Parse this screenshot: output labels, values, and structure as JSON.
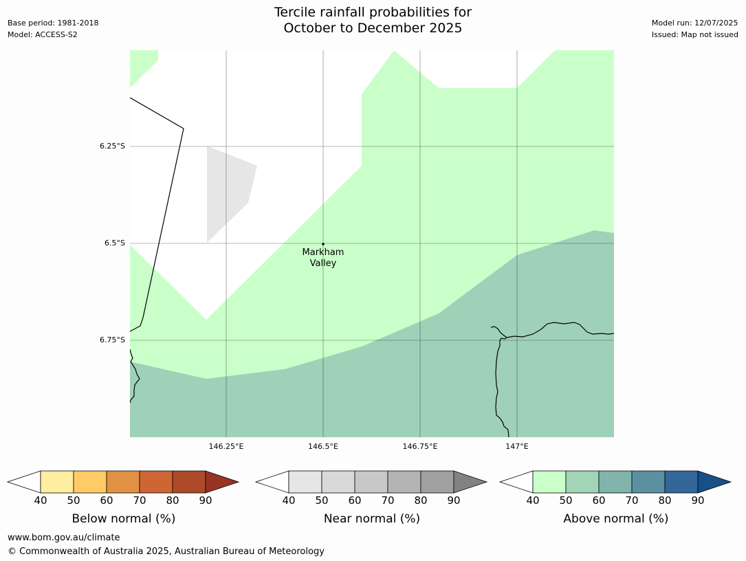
{
  "title": {
    "line1": "Tercile rainfall probabilities for",
    "line2": "October to December 2025"
  },
  "meta": {
    "base_period": "Base period: 1981-2018",
    "model": "Model: ACCESS-S2",
    "model_run": "Model run: 12/07/2025",
    "issued": "Issued: Map not issued"
  },
  "map": {
    "lat_labels": [
      "6.25°S",
      "6.5°S",
      "6.75°S"
    ],
    "lon_labels": [
      "146.25°E",
      "146.5°E",
      "146.75°E",
      "147°E"
    ],
    "place": {
      "name_line1": "Markham",
      "name_line2": "Valley"
    },
    "colors": {
      "above_40_50": "#caffca",
      "above_50_60": "#9fd1b9",
      "near_40_50": "#e6e6e6",
      "background": "#ffffff"
    }
  },
  "colorbars": [
    {
      "label": "Below normal (%)",
      "ticks": [
        "40",
        "50",
        "60",
        "70",
        "80",
        "90"
      ],
      "colors": [
        "#ffeea0",
        "#fecb66",
        "#e19144",
        "#cd6633",
        "#ad4a29",
        "#963523"
      ]
    },
    {
      "label": "Near normal (%)",
      "ticks": [
        "40",
        "50",
        "60",
        "70",
        "80",
        "90"
      ],
      "colors": [
        "#e6e6e6",
        "#d9d9d9",
        "#c8c8c8",
        "#b4b4b4",
        "#a0a0a0",
        "#828282"
      ]
    },
    {
      "label": "Above normal (%)",
      "ticks": [
        "40",
        "50",
        "60",
        "70",
        "80",
        "90"
      ],
      "colors": [
        "#caffca",
        "#a2d4b7",
        "#80b4ad",
        "#5b90a0",
        "#336799",
        "#174f87"
      ]
    }
  ],
  "footer": {
    "url": "www.bom.gov.au/climate",
    "copyright": "© Commonwealth of Australia 2025, Australian Bureau of Meteorology"
  }
}
